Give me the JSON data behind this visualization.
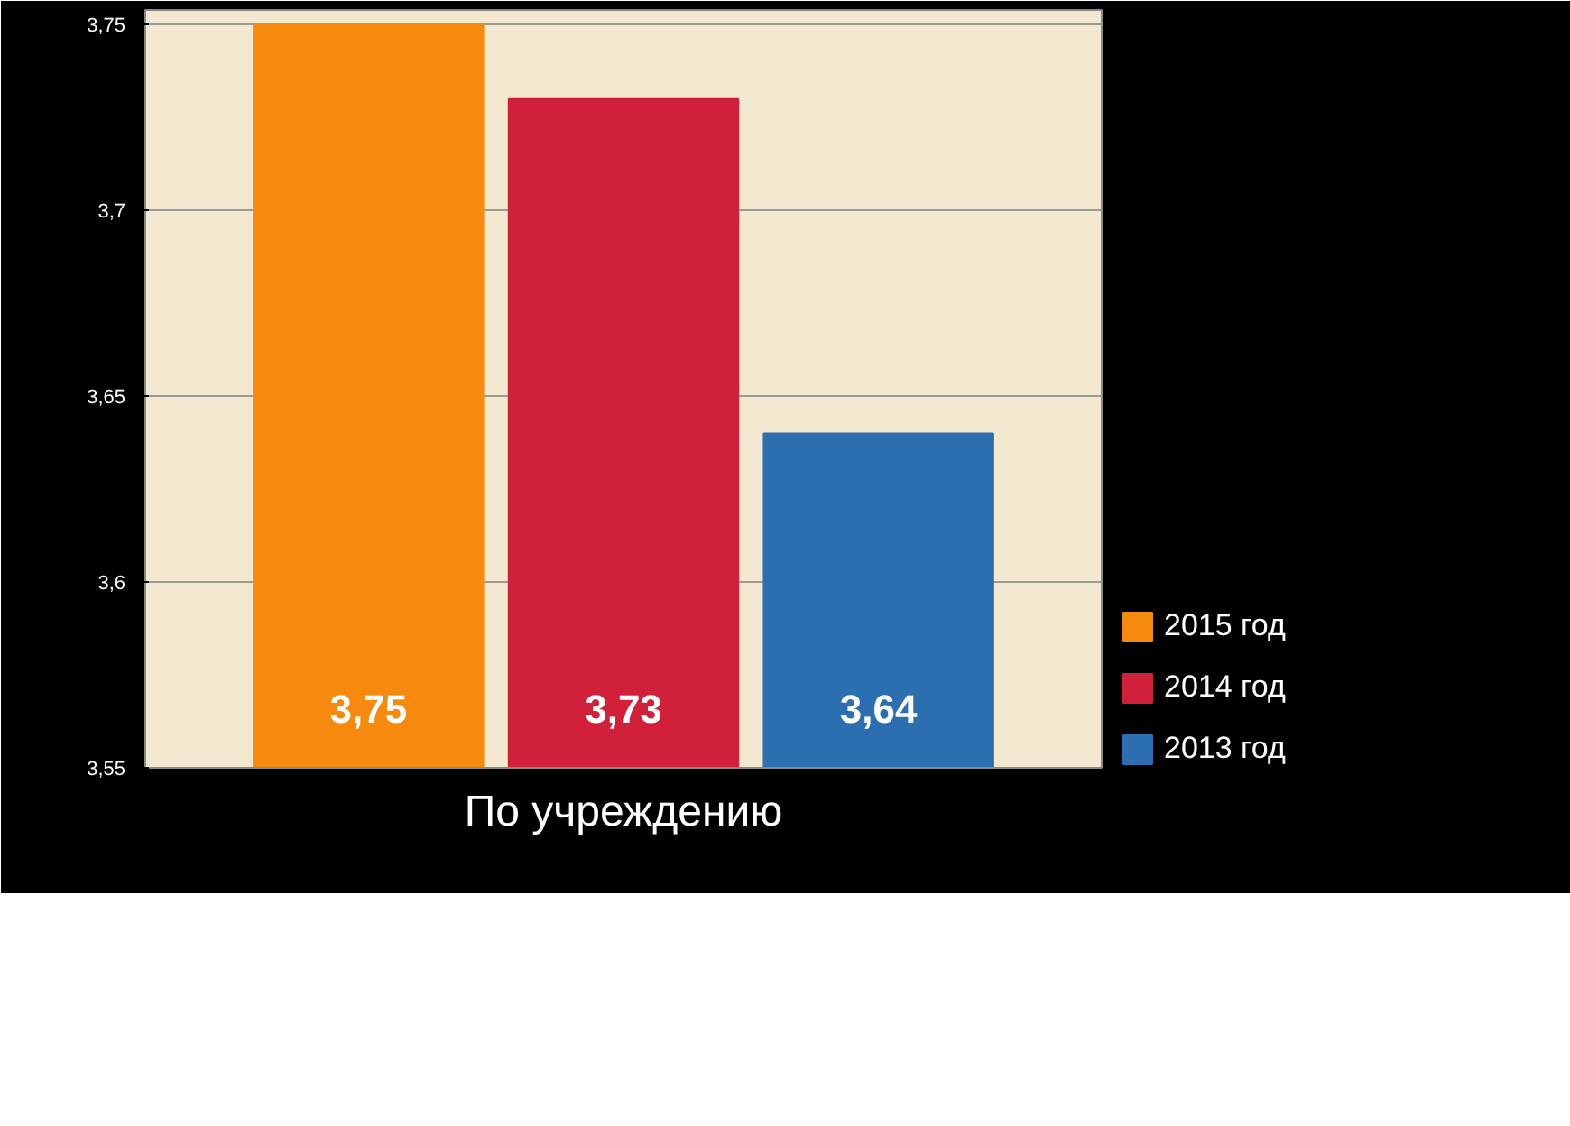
{
  "chart_data": {
    "type": "bar",
    "categories": [
      "По учреждению"
    ],
    "series": [
      {
        "name": "2015 год",
        "color": "#f68a0e",
        "values": [
          3.75
        ],
        "value_labels": [
          "3,75"
        ]
      },
      {
        "name": "2014 год",
        "color": "#d0203a",
        "values": [
          3.73
        ],
        "value_labels": [
          "3,73"
        ]
      },
      {
        "name": "2013 год",
        "color": "#2b6fb0",
        "values": [
          3.64
        ],
        "value_labels": [
          "3,64"
        ]
      }
    ],
    "ylim": [
      3.55,
      3.75
    ],
    "yticks": [
      {
        "value": 3.55,
        "label": "3,55"
      },
      {
        "value": 3.6,
        "label": "3,6"
      },
      {
        "value": 3.65,
        "label": "3,65"
      },
      {
        "value": 3.7,
        "label": "3,7"
      },
      {
        "value": 3.75,
        "label": "3,75"
      }
    ],
    "grid": "y",
    "legend": "bottom right"
  }
}
